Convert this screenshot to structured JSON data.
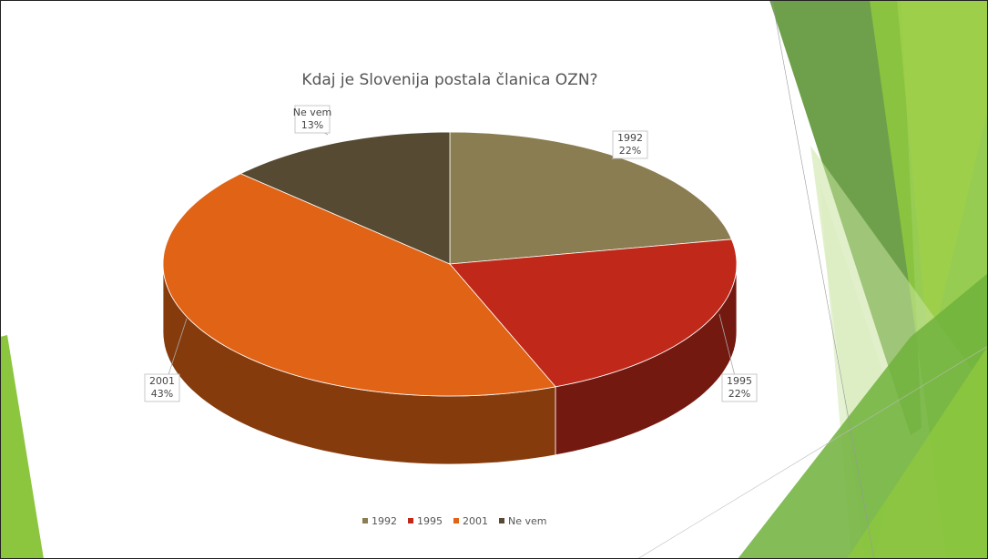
{
  "chart_data": {
    "type": "pie3d",
    "title": "Kdaj je Slovenija postala članica OZN?",
    "categories": [
      "1992",
      "1995",
      "2001",
      "Ne vem"
    ],
    "values": [
      22,
      22,
      43,
      13
    ],
    "value_labels": [
      "22%",
      "22%",
      "43%",
      "13%"
    ],
    "colors": [
      "#8b7d52",
      "#c0291a",
      "#e06316",
      "#564a32"
    ]
  }
}
